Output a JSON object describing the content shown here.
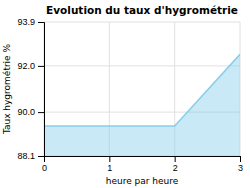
{
  "chart_data": {
    "type": "area",
    "title": "Evolution du taux d'hygrométrie",
    "x_label": "heure par heure",
    "y_label": "Taux hygrométrie %",
    "x": [
      0,
      1,
      2,
      3
    ],
    "values": [
      89.4,
      89.4,
      89.4,
      92.5
    ],
    "color": "#87ceeb",
    "xlim": [
      0,
      3
    ],
    "ylim": [
      88.1,
      93.9
    ],
    "xticks": [
      0,
      1,
      2,
      3
    ],
    "yticks": [
      88.1,
      {
        "value": 90.0,
        "label": "90.0"
      },
      {
        "value": 92.0,
        "label": "92.0"
      },
      93.9
    ],
    "grid": true
  }
}
